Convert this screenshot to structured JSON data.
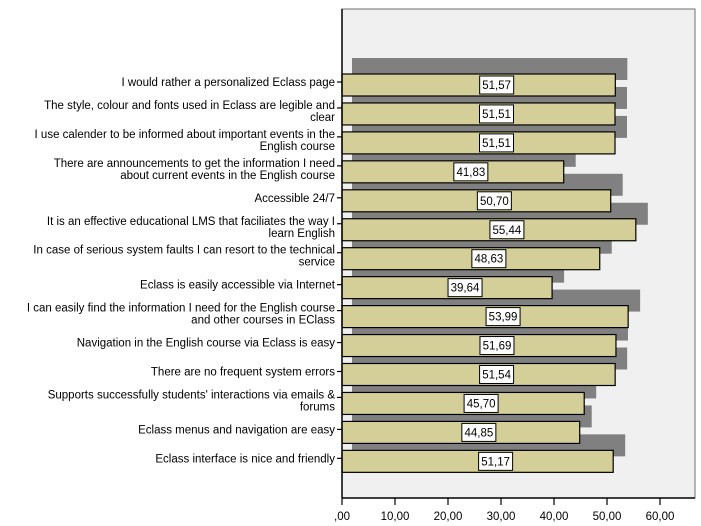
{
  "chart_data": {
    "type": "bar",
    "orientation": "horizontal",
    "title": "",
    "xlabel": "",
    "ylabel": "",
    "xlim": [
      0,
      66
    ],
    "xticks": [
      0,
      10,
      20,
      30,
      40,
      50,
      60
    ],
    "xtick_labels": [
      ",00",
      "10,00",
      "20,00",
      "30,00",
      "40,00",
      "50,00",
      "60,00"
    ],
    "grid": false,
    "legend": "none",
    "colors": {
      "bar": "#d4cf98",
      "shadow": "#808080",
      "plot_bg": "#f0f0f0",
      "label_box": "#ffffff",
      "border": "#000000"
    },
    "categories": [
      [
        "I would rather a personalized Eclass page"
      ],
      [
        "The style, colour and fonts used in Eclass are legible and",
        "clear"
      ],
      [
        "I use calender to be informed about important events in the",
        "English course"
      ],
      [
        "There are announcements to get the information I need",
        "about current events in the English course"
      ],
      [
        "Accessible 24/7"
      ],
      [
        "It is an effective educational LMS that faciliates the way I",
        "learn English"
      ],
      [
        "In case of serious system faults I can resort to the technical",
        "service"
      ],
      [
        "Eclass is easily accessible via Internet"
      ],
      [
        "I can easily find the information I need for the English course",
        "and other courses in EClass"
      ],
      [
        "Navigation in the English course via Eclass is easy"
      ],
      [
        "There are no frequent system errors"
      ],
      [
        "Supports successfully students' interactions via emails &",
        "forums"
      ],
      [
        "Eclass menus and navigation are easy"
      ],
      [
        "Eclass interface is nice and friendly"
      ]
    ],
    "values": [
      51.57,
      51.51,
      51.51,
      41.83,
      50.7,
      55.44,
      48.63,
      39.64,
      53.99,
      51.69,
      51.54,
      45.7,
      44.85,
      51.17
    ],
    "value_labels": [
      "51,57",
      "51,51",
      "51,51",
      "41,83",
      "50,70",
      "55,44",
      "48,63",
      "39,64",
      "53,99",
      "51,69",
      "51,54",
      "45,70",
      "44,85",
      "51,17"
    ]
  }
}
